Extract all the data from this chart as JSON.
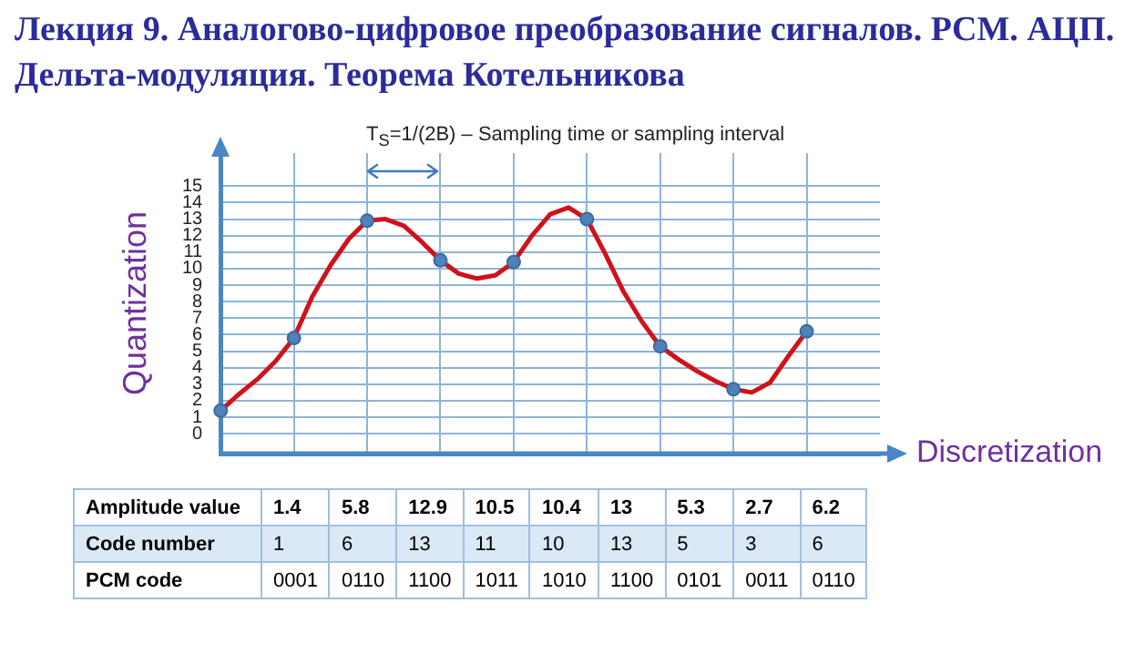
{
  "chart_data": {
    "type": "line",
    "title": "Лекция 9. Аналогово-цифровое преобразование сигналов. PCM. АЦП. Дельта-модуляция. Теорема Котельникова",
    "xlabel": "Discretization",
    "ylabel": "Quantization",
    "categories": [
      null,
      null,
      null,
      null,
      null,
      null,
      null,
      null,
      null,
      null,
      null,
      null,
      null,
      null,
      null,
      null,
      null,
      null,
      null,
      null,
      null,
      null,
      null,
      null,
      null,
      null,
      null,
      null,
      null,
      null,
      null,
      null,
      null,
      null,
      null,
      null,
      null
    ],
    "series": [
      {
        "color": "#d0121b",
        "marker": "none",
        "values": [
          1.4,
          2.4,
          3.3,
          4.4,
          5.8,
          8.3,
          10.2,
          11.8,
          12.9,
          13,
          12.6,
          11.6,
          10.5,
          9.7,
          9.4,
          9.6,
          10.4,
          12,
          13.3,
          13.7,
          13,
          10.9,
          8.6,
          6.8,
          5.3,
          4.5,
          3.8,
          3.2,
          2.7,
          2.5,
          3.1,
          4.7,
          6.2,
          null,
          null,
          null,
          null
        ]
      },
      {
        "type": "scatter",
        "color": "#4f81bd",
        "marker": "circle",
        "values": [
          1.4,
          null,
          null,
          null,
          5.8,
          null,
          null,
          null,
          12.9,
          null,
          null,
          null,
          10.5,
          null,
          null,
          null,
          10.4,
          null,
          null,
          null,
          13,
          null,
          null,
          null,
          5.3,
          null,
          null,
          null,
          2.7,
          null,
          null,
          null,
          6.2,
          null,
          null,
          null,
          null
        ]
      }
    ],
    "annotations": [
      "T$_{S}$=1/(2B) – Sampling time or sampling interval",
      "Amplitude value",
      "1.4",
      "5.8",
      "12.9",
      "10.5",
      "10.4",
      "13",
      "5.3",
      "2.7",
      "6.2",
      "Code number",
      "1",
      "6",
      "13",
      "11",
      "10",
      "13",
      "5",
      "3",
      "6",
      "PCM code",
      "0001",
      "0110",
      "1100",
      "1011",
      "1010",
      "1100",
      "0101",
      "0011",
      "0110"
    ],
    "ylim": [
      -1.2,
      17
    ],
    "yticks": [
      0,
      1,
      2,
      3,
      4,
      5,
      6,
      7,
      8,
      9,
      10,
      11,
      12,
      13,
      14,
      15
    ],
    "tick_labels": "y",
    "grid": true
  }
}
